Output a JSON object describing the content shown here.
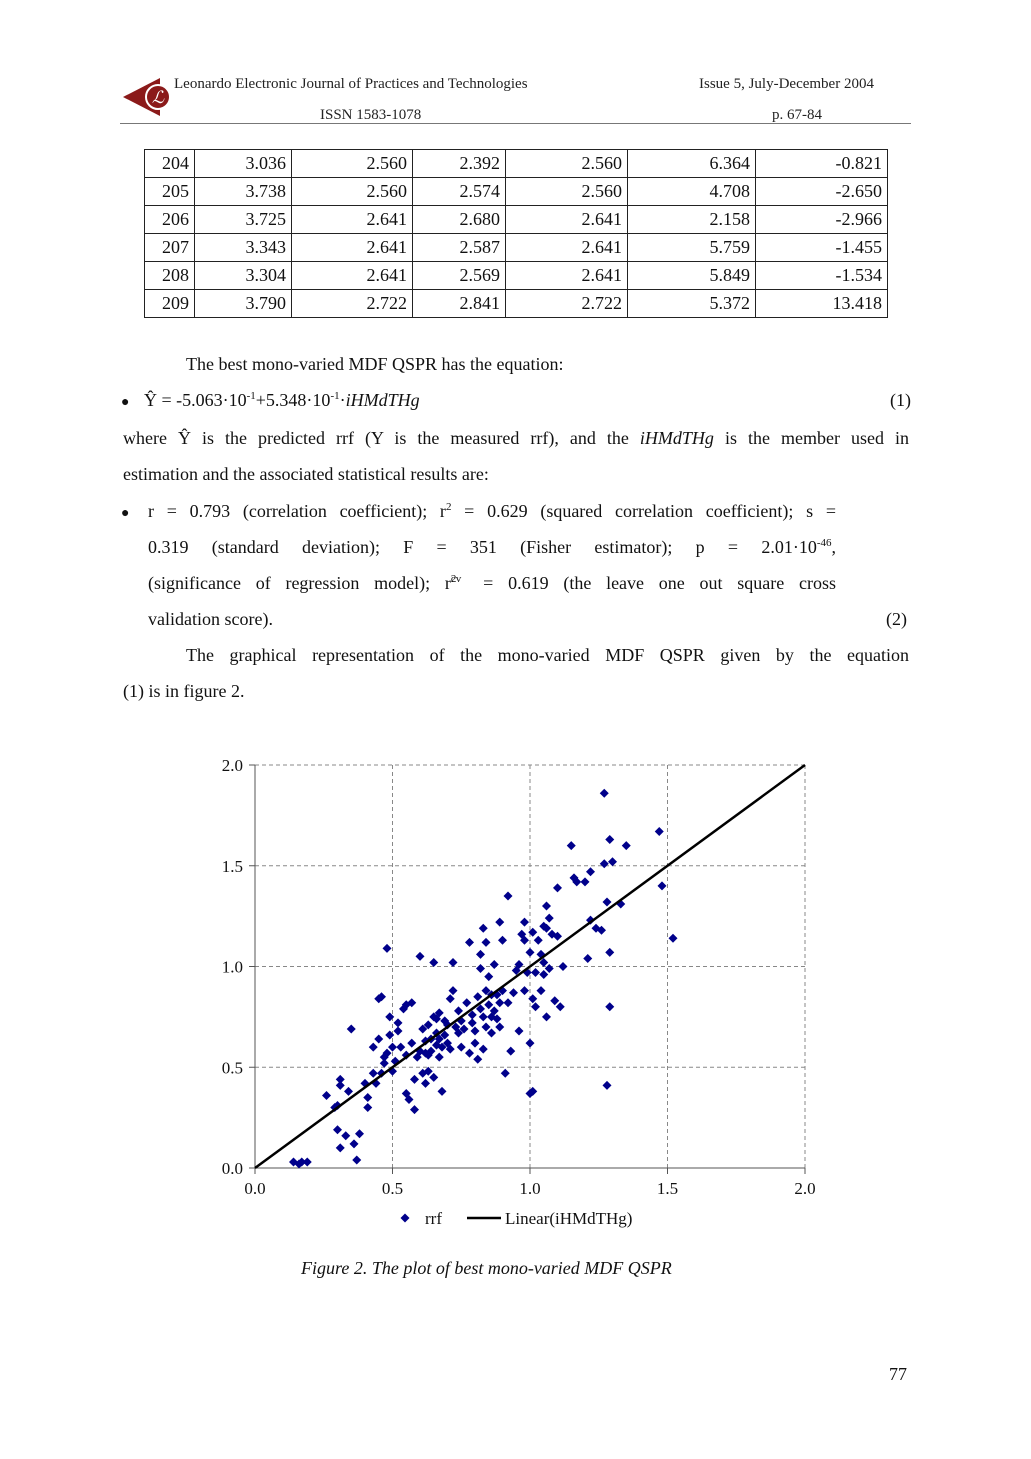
{
  "header": {
    "journal": "Leonardo Electronic Journal of Practices and Technologies",
    "issue": "Issue 5, July-December 2004",
    "issn": "ISSN 1583-1078",
    "pages": "p. 67-84"
  },
  "table": {
    "rows": [
      [
        "204",
        "3.036",
        "2.560",
        "2.392",
        "2.560",
        "6.364",
        "-0.821"
      ],
      [
        "205",
        "3.738",
        "2.560",
        "2.574",
        "2.560",
        "4.708",
        "-2.650"
      ],
      [
        "206",
        "3.725",
        "2.641",
        "2.680",
        "2.641",
        "2.158",
        "-2.966"
      ],
      [
        "207",
        "3.343",
        "2.641",
        "2.587",
        "2.641",
        "5.759",
        "-1.455"
      ],
      [
        "208",
        "3.304",
        "2.641",
        "2.569",
        "2.641",
        "5.849",
        "-1.534"
      ],
      [
        "209",
        "3.790",
        "2.722",
        "2.841",
        "2.722",
        "5.372",
        "13.418"
      ]
    ]
  },
  "text": {
    "intro": "The best mono-varied MDF QSPR has the equation:",
    "eq1_a": "Ŷ = -5.063·10",
    "eq1_exp1": "-1",
    "eq1_b": "+5.348·10",
    "eq1_exp2": "-1",
    "eq1_c": "·",
    "eq1_var": "iHMdTHg",
    "eq1_num": "(1)",
    "where_a": "where Ŷ is the predicted rrf (Y is the measured rrf), and the",
    "where_var": "iHMdTHg",
    "where_b": "is the member used in",
    "where_line2": "estimation and the associated statistical results are:",
    "stat_l1_a": "r = 0.793 (correlation coefficient); r",
    "stat_l1_sup": "2",
    "stat_l1_b": " = 0.629 (squared correlation coefficient); s =",
    "stat_l2_a": "0.319 (standard deviation); F = 351 (Fisher estimator); p = 2.01·10",
    "stat_l2_sup": "-46",
    "stat_l2_b": ",",
    "stat_l3_a": "(significance of regression model); r",
    "stat_l3_sup": "2",
    "stat_l3_sub": "cv",
    "stat_l3_b": " = 0.619 (the leave one out square cross",
    "stat_l4": "validation score).",
    "stat_num": "(2)",
    "graph_l1": "The graphical representation of the mono-varied MDF QSPR given by the equation",
    "graph_l2": "(1) is in figure 2.",
    "caption": "Figure 2. The plot of best mono-varied MDF QSPR",
    "page_number": "77"
  },
  "chart_data": {
    "type": "scatter",
    "xlim": [
      0.0,
      2.0
    ],
    "ylim": [
      0.0,
      2.0
    ],
    "x_ticks": [
      "0.0",
      "0.5",
      "1.0",
      "1.5",
      "2.0"
    ],
    "y_ticks": [
      "0.0",
      "0.5",
      "1.0",
      "1.5",
      "2.0"
    ],
    "grid": true,
    "legend_position": "bottom",
    "legend": [
      "rrf",
      "Linear(iHMdTHg)"
    ],
    "colors": {
      "points": "#00008B",
      "line": "#000000"
    },
    "line": {
      "from": [
        0.0,
        0.0
      ],
      "to": [
        2.0,
        2.0
      ]
    },
    "points": [
      [
        0.14,
        0.03
      ],
      [
        0.16,
        0.02
      ],
      [
        0.17,
        0.03
      ],
      [
        0.19,
        0.03
      ],
      [
        0.26,
        0.36
      ],
      [
        0.29,
        0.3
      ],
      [
        0.3,
        0.19
      ],
      [
        0.3,
        0.31
      ],
      [
        0.31,
        0.44
      ],
      [
        0.31,
        0.41
      ],
      [
        0.31,
        0.1
      ],
      [
        0.33,
        0.16
      ],
      [
        0.34,
        0.38
      ],
      [
        0.35,
        0.69
      ],
      [
        0.36,
        0.12
      ],
      [
        0.37,
        0.04
      ],
      [
        0.38,
        0.17
      ],
      [
        0.4,
        0.42
      ],
      [
        0.41,
        0.35
      ],
      [
        0.41,
        0.3
      ],
      [
        0.43,
        0.47
      ],
      [
        0.43,
        0.6
      ],
      [
        0.44,
        0.42
      ],
      [
        0.45,
        0.64
      ],
      [
        0.45,
        0.84
      ],
      [
        0.46,
        0.85
      ],
      [
        0.46,
        0.47
      ],
      [
        0.47,
        0.55
      ],
      [
        0.47,
        0.52
      ],
      [
        0.48,
        1.09
      ],
      [
        0.48,
        0.57
      ],
      [
        0.49,
        0.75
      ],
      [
        0.49,
        0.66
      ],
      [
        0.5,
        0.6
      ],
      [
        0.5,
        0.48
      ],
      [
        0.51,
        0.53
      ],
      [
        0.52,
        0.68
      ],
      [
        0.52,
        0.72
      ],
      [
        0.53,
        0.6
      ],
      [
        0.54,
        0.79
      ],
      [
        0.55,
        0.81
      ],
      [
        0.55,
        0.56
      ],
      [
        0.55,
        0.37
      ],
      [
        0.56,
        0.34
      ],
      [
        0.57,
        0.62
      ],
      [
        0.57,
        0.82
      ],
      [
        0.58,
        0.29
      ],
      [
        0.58,
        0.44
      ],
      [
        0.59,
        0.55
      ],
      [
        0.6,
        1.05
      ],
      [
        0.6,
        0.58
      ],
      [
        0.61,
        0.47
      ],
      [
        0.61,
        0.69
      ],
      [
        0.62,
        0.57
      ],
      [
        0.62,
        0.63
      ],
      [
        0.62,
        0.42
      ],
      [
        0.63,
        0.56
      ],
      [
        0.63,
        0.48
      ],
      [
        0.63,
        0.71
      ],
      [
        0.64,
        0.64
      ],
      [
        0.64,
        0.58
      ],
      [
        0.65,
        0.75
      ],
      [
        0.65,
        0.45
      ],
      [
        0.65,
        1.02
      ],
      [
        0.66,
        0.61
      ],
      [
        0.66,
        0.67
      ],
      [
        0.66,
        0.74
      ],
      [
        0.67,
        0.55
      ],
      [
        0.67,
        0.64
      ],
      [
        0.67,
        0.77
      ],
      [
        0.68,
        0.38
      ],
      [
        0.68,
        0.6
      ],
      [
        0.69,
        0.66
      ],
      [
        0.69,
        0.73
      ],
      [
        0.7,
        0.62
      ],
      [
        0.7,
        0.71
      ],
      [
        0.71,
        0.84
      ],
      [
        0.71,
        0.59
      ],
      [
        0.72,
        1.02
      ],
      [
        0.72,
        0.88
      ],
      [
        0.73,
        0.7
      ],
      [
        0.74,
        0.67
      ],
      [
        0.74,
        0.78
      ],
      [
        0.75,
        0.6
      ],
      [
        0.75,
        0.73
      ],
      [
        0.76,
        0.69
      ],
      [
        0.77,
        0.82
      ],
      [
        0.78,
        1.12
      ],
      [
        0.78,
        0.57
      ],
      [
        0.79,
        0.72
      ],
      [
        0.79,
        0.76
      ],
      [
        0.8,
        0.62
      ],
      [
        0.8,
        0.68
      ],
      [
        0.81,
        0.85
      ],
      [
        0.81,
        0.54
      ],
      [
        0.82,
        1.06
      ],
      [
        0.82,
        0.79
      ],
      [
        0.82,
        0.99
      ],
      [
        0.83,
        1.19
      ],
      [
        0.83,
        0.75
      ],
      [
        0.83,
        0.59
      ],
      [
        0.84,
        0.88
      ],
      [
        0.84,
        0.7
      ],
      [
        0.84,
        1.12
      ],
      [
        0.85,
        0.81
      ],
      [
        0.85,
        0.95
      ],
      [
        0.86,
        0.86
      ],
      [
        0.86,
        0.75
      ],
      [
        0.86,
        0.67
      ],
      [
        0.87,
        1.01
      ],
      [
        0.87,
        0.78
      ],
      [
        0.88,
        0.86
      ],
      [
        0.88,
        0.74
      ],
      [
        0.89,
        0.82
      ],
      [
        0.89,
        1.22
      ],
      [
        0.89,
        0.7
      ],
      [
        0.9,
        1.13
      ],
      [
        0.9,
        0.88
      ],
      [
        0.91,
        0.47
      ],
      [
        0.92,
        0.82
      ],
      [
        0.92,
        1.35
      ],
      [
        0.93,
        0.58
      ],
      [
        0.94,
        0.87
      ],
      [
        0.95,
        0.98
      ],
      [
        0.96,
        0.68
      ],
      [
        0.96,
        1.01
      ],
      [
        0.97,
        1.16
      ],
      [
        0.98,
        1.22
      ],
      [
        0.98,
        0.88
      ],
      [
        0.98,
        1.13
      ],
      [
        0.99,
        0.97
      ],
      [
        1.0,
        0.62
      ],
      [
        1.0,
        0.37
      ],
      [
        1.0,
        1.07
      ],
      [
        1.01,
        0.84
      ],
      [
        1.01,
        1.17
      ],
      [
        1.01,
        0.38
      ],
      [
        1.02,
        0.97
      ],
      [
        1.02,
        0.8
      ],
      [
        1.03,
        1.13
      ],
      [
        1.04,
        0.88
      ],
      [
        1.04,
        1.06
      ],
      [
        1.05,
        0.96
      ],
      [
        1.05,
        1.2
      ],
      [
        1.05,
        1.02
      ],
      [
        1.06,
        1.19
      ],
      [
        1.06,
        0.75
      ],
      [
        1.06,
        1.3
      ],
      [
        1.07,
        1.24
      ],
      [
        1.07,
        0.99
      ],
      [
        1.08,
        1.16
      ],
      [
        1.09,
        0.83
      ],
      [
        1.1,
        1.39
      ],
      [
        1.1,
        1.15
      ],
      [
        1.11,
        0.8
      ],
      [
        1.12,
        1.0
      ],
      [
        1.15,
        1.6
      ],
      [
        1.16,
        1.44
      ],
      [
        1.17,
        1.42
      ],
      [
        1.2,
        1.42
      ],
      [
        1.21,
        1.04
      ],
      [
        1.22,
        1.47
      ],
      [
        1.22,
        1.23
      ],
      [
        1.24,
        1.19
      ],
      [
        1.26,
        1.18
      ],
      [
        1.27,
        1.51
      ],
      [
        1.27,
        1.86
      ],
      [
        1.28,
        1.32
      ],
      [
        1.28,
        0.41
      ],
      [
        1.29,
        1.63
      ],
      [
        1.29,
        1.07
      ],
      [
        1.29,
        0.8
      ],
      [
        1.3,
        1.52
      ],
      [
        1.33,
        1.31
      ],
      [
        1.35,
        1.6
      ],
      [
        1.47,
        1.67
      ],
      [
        1.48,
        1.4
      ],
      [
        1.52,
        1.14
      ]
    ]
  }
}
